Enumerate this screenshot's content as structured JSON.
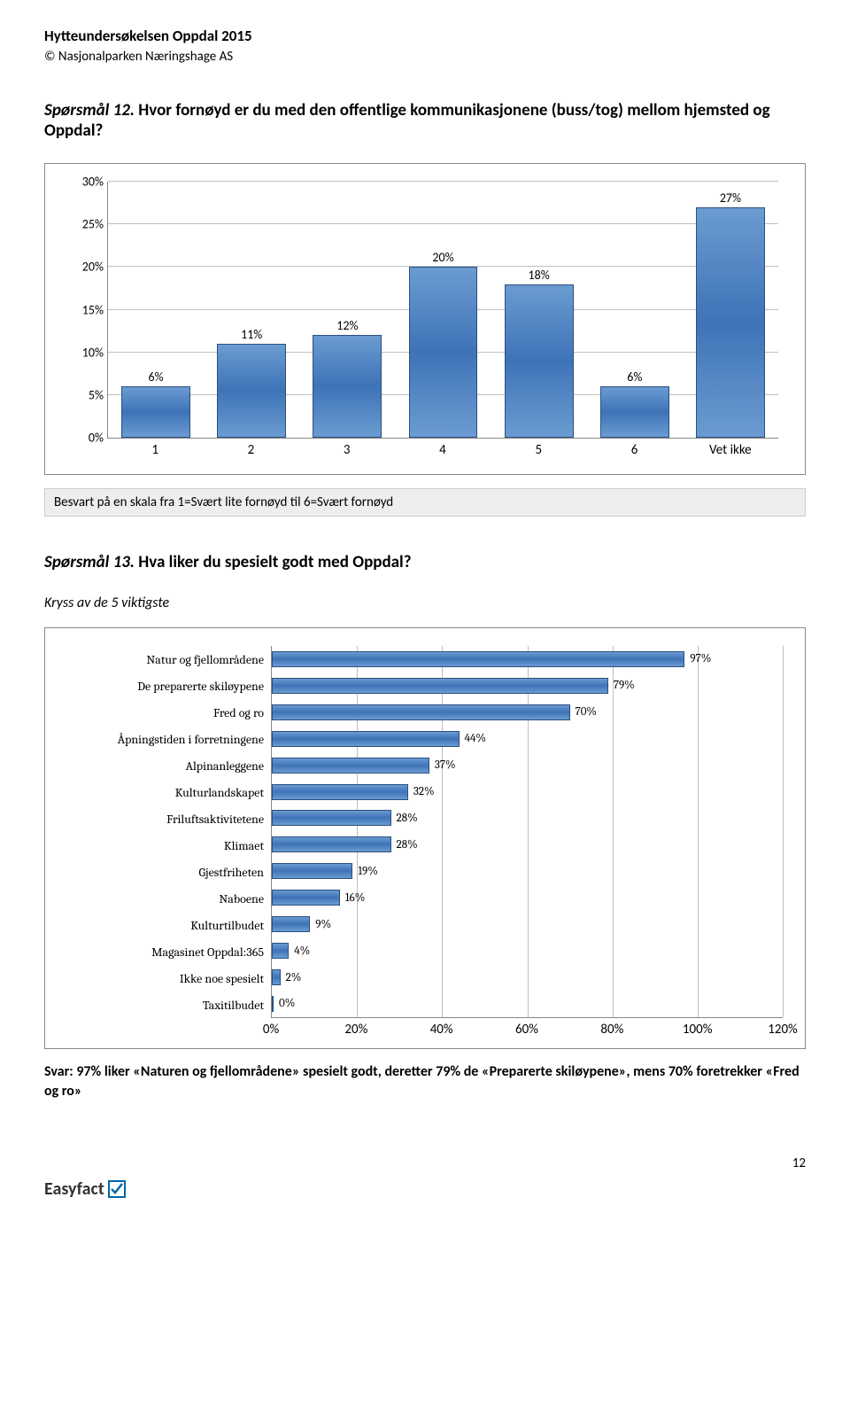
{
  "header": {
    "title": "Hytteundersøkelsen Oppdal 2015",
    "copyright": "© Nasjonalparken Næringshage AS"
  },
  "q12": {
    "label": "Spørsmål 12.",
    "text": " Hvor fornøyd er du med den offentlige kommunikasjonene (buss/tog) mellom hjemsted og Oppdal?",
    "chart": {
      "type": "bar",
      "ylim_max": 30,
      "ytick_step": 5,
      "yticks": [
        "0%",
        "5%",
        "10%",
        "15%",
        "20%",
        "25%",
        "30%"
      ],
      "categories": [
        "1",
        "2",
        "3",
        "4",
        "5",
        "6",
        "Vet ikke"
      ],
      "values": [
        6,
        11,
        12,
        20,
        18,
        6,
        27
      ],
      "value_labels": [
        "6%",
        "11%",
        "12%",
        "20%",
        "18%",
        "6%",
        "27%"
      ],
      "bar_color": "#4f81bd",
      "grid_color": "#bfbfbf",
      "border_color": "#888888"
    },
    "note": "Besvart på en skala fra 1=Svært lite fornøyd til 6=Svært fornøyd"
  },
  "q13": {
    "label": "Spørsmål 13.",
    "text": " Hva liker du spesielt godt med Oppdal?",
    "subhead": "Kryss av de 5 viktigste",
    "chart": {
      "type": "hbar",
      "xlim_max": 120,
      "xtick_step": 20,
      "xticks": [
        "0%",
        "20%",
        "40%",
        "60%",
        "80%",
        "100%",
        "120%"
      ],
      "items": [
        {
          "label": "Natur og fjellområdene",
          "value": 97,
          "vl": "97%"
        },
        {
          "label": "De preparerte skiløypene",
          "value": 79,
          "vl": "79%"
        },
        {
          "label": "Fred og ro",
          "value": 70,
          "vl": "70%"
        },
        {
          "label": "Åpningstiden i forretningene",
          "value": 44,
          "vl": "44%"
        },
        {
          "label": "Alpinanleggene",
          "value": 37,
          "vl": "37%"
        },
        {
          "label": "Kulturlandskapet",
          "value": 32,
          "vl": "32%"
        },
        {
          "label": "Friluftsaktivitetene",
          "value": 28,
          "vl": "28%"
        },
        {
          "label": "Klimaet",
          "value": 28,
          "vl": "28%"
        },
        {
          "label": "Gjestfriheten",
          "value": 19,
          "vl": "19%"
        },
        {
          "label": "Naboene",
          "value": 16,
          "vl": "16%"
        },
        {
          "label": "Kulturtilbudet",
          "value": 9,
          "vl": "9%"
        },
        {
          "label": "Magasinet Oppdal:365",
          "value": 4,
          "vl": "4%"
        },
        {
          "label": "Ikke noe spesielt",
          "value": 2,
          "vl": "2%"
        },
        {
          "label": "Taxitilbudet",
          "value": 0,
          "vl": "0%"
        }
      ],
      "bar_color": "#4f81bd",
      "grid_color": "#bfbfbf"
    },
    "answer": "Svar: 97% liker «Naturen og fjellområdene» spesielt godt, deretter 79% de «Preparerte skiløypene», mens 70% foretrekker «Fred og ro»"
  },
  "footer": {
    "page": "12",
    "logo_text": "Easyfact"
  }
}
